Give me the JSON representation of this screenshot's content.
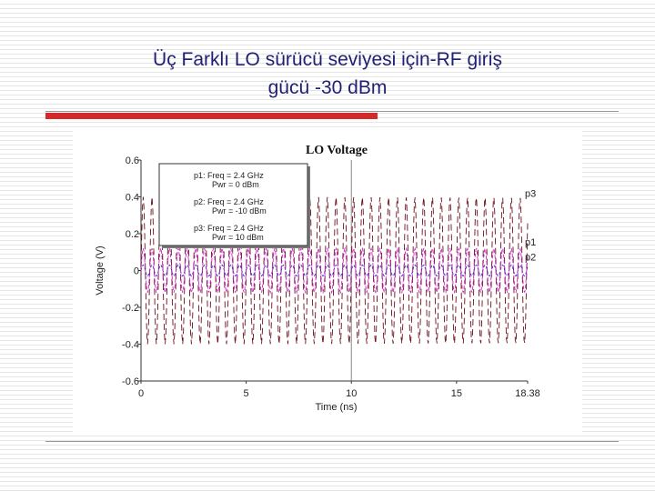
{
  "slide": {
    "title_line1": "Üç Farklı LO sürücü seviyesi için-RF giriş",
    "title_line2": "gücü -30 dBm",
    "accent_color": "#d42a2a",
    "title_color": "#1f1f73"
  },
  "chart_data": {
    "type": "line",
    "title": "LO Voltage",
    "xlabel": "Time (ns)",
    "ylabel": "Voltage (V)",
    "xlim": [
      0,
      18.38
    ],
    "ylim": [
      -0.6,
      0.6
    ],
    "x_ticks": [
      "0",
      "5",
      "10",
      "15",
      "18.38"
    ],
    "y_ticks": [
      "0.6",
      "0.4",
      "0.2",
      "0",
      "-0.2",
      "-0.4",
      "-0.6"
    ],
    "frequency_ghz": 2.4,
    "grid": false,
    "legend": "top-left",
    "marker_time_ns": 10,
    "series": [
      {
        "name": "p1",
        "legend_lines": [
          "p1: Freq = 2.4 GHz",
          "Pwr = 0 dBm"
        ],
        "amplitude_v": 0.12,
        "color": "#cc22cc"
      },
      {
        "name": "p2",
        "legend_lines": [
          "p2: Freq = 2.4 GHz",
          "Pwr = -10 dBm"
        ],
        "amplitude_v": 0.03,
        "color": "#2233bb"
      },
      {
        "name": "p3",
        "legend_lines": [
          "p3: Freq = 2.4 GHz",
          "Pwr = 10 dBm"
        ],
        "amplitude_v": 0.4,
        "color": "#6b0f1a"
      }
    ]
  }
}
